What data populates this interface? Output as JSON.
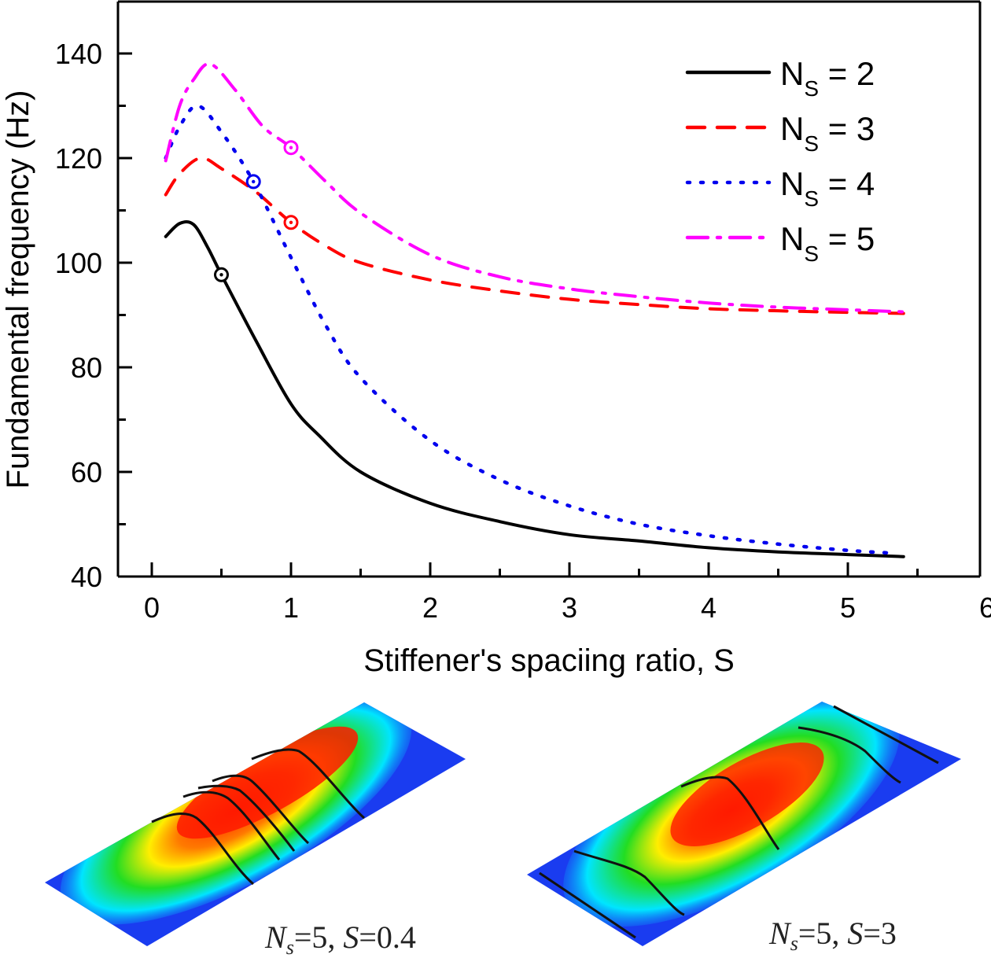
{
  "chart_data": {
    "type": "line",
    "title": "",
    "xlabel": "Stiffener's spaciing ratio, S",
    "ylabel": "Fundamental frequency (Hz)",
    "xlim": [
      -0.25,
      6
    ],
    "ylim": [
      40,
      150
    ],
    "xticks": [
      0,
      1,
      2,
      3,
      4,
      5,
      6
    ],
    "xtick_labels": [
      "0",
      "1",
      "2",
      "3",
      "4",
      "5",
      "6"
    ],
    "x_minor_ticks": [
      0.5,
      1.5,
      2.5,
      3.5,
      4.5,
      5.5
    ],
    "yticks": [
      40,
      60,
      80,
      100,
      120,
      140
    ],
    "ytick_labels": [
      "40",
      "60",
      "80",
      "100",
      "120",
      "140"
    ],
    "y_minor_ticks": [
      50,
      70,
      90,
      110,
      130
    ],
    "grid": false,
    "legend_position": "top-right",
    "series": [
      {
        "name": "Ns = 2",
        "legend_main": "N",
        "legend_sub": "S",
        "legend_value": " = 2",
        "color": "#000000",
        "style": "solid",
        "x": [
          0.1,
          0.2,
          0.3,
          0.4,
          0.5,
          0.75,
          1.0,
          1.2,
          1.5,
          2.0,
          2.5,
          3.0,
          3.5,
          4.0,
          4.5,
          5.0,
          5.4
        ],
        "y": [
          105,
          107.5,
          107.3,
          103,
          97.7,
          85,
          73,
          67,
          60,
          54,
          50.5,
          48,
          46.8,
          45.5,
          44.7,
          44.2,
          43.8
        ],
        "marker": {
          "x": 0.5,
          "y": 97.7
        }
      },
      {
        "name": "Ns = 3",
        "legend_main": "N",
        "legend_sub": "S",
        "legend_value": " = 3",
        "color": "#ff0000",
        "style": "dash",
        "x": [
          0.1,
          0.2,
          0.35,
          0.5,
          0.75,
          1.0,
          1.25,
          1.5,
          2.0,
          2.5,
          3.0,
          3.5,
          4.0,
          4.5,
          5.0,
          5.4
        ],
        "y": [
          113,
          117,
          120,
          118,
          113.5,
          107.7,
          103.2,
          100,
          96.7,
          94.6,
          93,
          92,
          91.2,
          90.8,
          90.5,
          90.3
        ],
        "marker": {
          "x": 1.0,
          "y": 107.7
        }
      },
      {
        "name": "Ns = 4",
        "legend_main": "N",
        "legend_sub": "S",
        "legend_value": " = 4",
        "color": "#0000ee",
        "style": "dot",
        "x": [
          0.1,
          0.2,
          0.33,
          0.5,
          0.73,
          1.0,
          1.25,
          1.5,
          2.0,
          2.5,
          3.0,
          3.5,
          4.0,
          4.5,
          5.0,
          5.3
        ],
        "y": [
          120,
          126,
          130,
          125,
          115.5,
          101,
          88,
          78,
          66,
          58.5,
          53.5,
          50,
          47.8,
          46.2,
          45,
          44.5
        ],
        "marker": {
          "x": 0.73,
          "y": 115.5
        }
      },
      {
        "name": "Ns = 5",
        "legend_main": "N",
        "legend_sub": "S",
        "legend_value": " = 5",
        "color": "#ff00ff",
        "style": "dashdot",
        "x": [
          0.1,
          0.2,
          0.3,
          0.42,
          0.6,
          0.8,
          1.0,
          1.25,
          1.5,
          2.0,
          2.5,
          3.0,
          3.5,
          4.0,
          4.5,
          5.0,
          5.4
        ],
        "y": [
          119.5,
          130,
          135,
          138,
          133,
          126,
          122,
          115.5,
          109.5,
          101.5,
          97.3,
          95,
          93.5,
          92.3,
          91.5,
          91,
          90.6
        ],
        "marker": {
          "x": 1.0,
          "y": 122
        }
      }
    ]
  },
  "insets": [
    {
      "name": "mode-shape-s-0.4",
      "caption_n": "N",
      "caption_sub": "s",
      "caption_rest_1": "=5, ",
      "caption_s": "S",
      "caption_rest_2": "=0.4",
      "stiffener_count": 5
    },
    {
      "name": "mode-shape-s-3",
      "caption_n": "N",
      "caption_sub": "s",
      "caption_rest_1": "=5, ",
      "caption_s": "S",
      "caption_rest_2": "=3",
      "stiffener_count": 5
    }
  ],
  "colors": {
    "plate_blue": "#1a3cf0",
    "plate_cyan": "#00e5ff",
    "plate_green": "#22dd22",
    "plate_yellow": "#ffee00",
    "plate_red": "#ff1a00"
  }
}
